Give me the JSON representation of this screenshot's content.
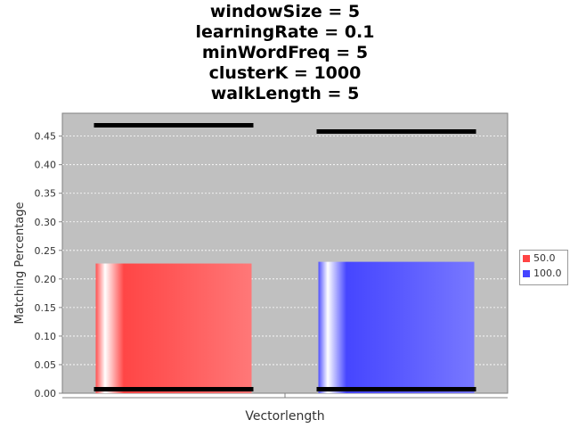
{
  "chart_data": {
    "type": "bar",
    "title_lines": [
      "windowSize = 5",
      "learningRate = 0.1",
      "minWordFreq = 5",
      "clusterK = 1000",
      "walkLength = 5"
    ],
    "xlabel": "Vectorlength",
    "ylabel": "Matching Percentage",
    "ylim": [
      0,
      0.49
    ],
    "yticks": [
      "0.00",
      "0.05",
      "0.10",
      "0.15",
      "0.20",
      "0.25",
      "0.30",
      "0.35",
      "0.40",
      "0.45"
    ],
    "grid": true,
    "legend_position": "right",
    "series": [
      {
        "name": "50.0",
        "value": 0.227,
        "error_high": 0.469,
        "error_low": 0.007,
        "color": "#ff4444"
      },
      {
        "name": "100.0",
        "value": 0.23,
        "error_high": 0.458,
        "error_low": 0.007,
        "color": "#4444ff"
      }
    ]
  },
  "colors": {
    "plot_background": "#c0c0c0",
    "gridline": "#ffffff",
    "error_bar": "#000000"
  }
}
